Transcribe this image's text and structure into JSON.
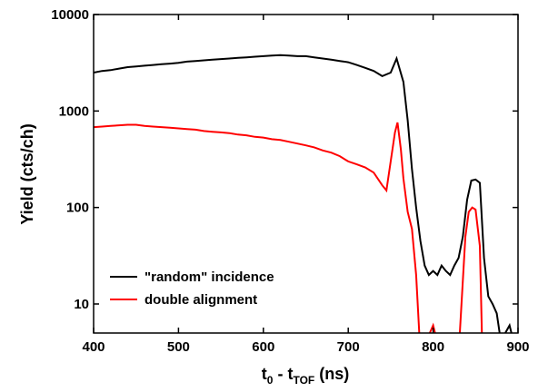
{
  "chart_data": {
    "type": "line",
    "x_label": [
      "t",
      "0",
      " - t",
      "TOF",
      " (ns)"
    ],
    "y_label": "Yield (cts/ch)",
    "xlim": [
      400,
      900
    ],
    "xticks": [
      400,
      500,
      600,
      700,
      800,
      900
    ],
    "ylim": [
      5,
      10000
    ],
    "yticks": [
      10,
      100,
      1000,
      10000
    ],
    "y_scale": "log",
    "legend": "lower left",
    "series": [
      {
        "name": "\"random\" incidence",
        "color": "#000000",
        "x": [
          400,
          410,
          420,
          430,
          440,
          450,
          460,
          470,
          480,
          490,
          500,
          510,
          520,
          530,
          540,
          550,
          560,
          570,
          580,
          590,
          600,
          610,
          620,
          630,
          640,
          650,
          660,
          670,
          680,
          690,
          700,
          710,
          720,
          730,
          740,
          750,
          757,
          765,
          770,
          775,
          780,
          785,
          790,
          795,
          800,
          805,
          810,
          815,
          820,
          825,
          830,
          835,
          840,
          845,
          850,
          855,
          860,
          865,
          870,
          875,
          880,
          885,
          890,
          895
        ],
        "values": [
          2500,
          2600,
          2650,
          2750,
          2850,
          2900,
          2950,
          3000,
          3050,
          3100,
          3150,
          3250,
          3300,
          3350,
          3400,
          3450,
          3500,
          3550,
          3600,
          3650,
          3700,
          3750,
          3800,
          3750,
          3700,
          3700,
          3600,
          3500,
          3400,
          3300,
          3200,
          3000,
          2800,
          2600,
          2300,
          2500,
          3500,
          2000,
          800,
          250,
          100,
          45,
          25,
          20,
          22,
          20,
          25,
          22,
          20,
          25,
          30,
          50,
          120,
          190,
          195,
          180,
          30,
          12,
          10,
          8,
          4,
          5,
          6,
          4
        ]
      },
      {
        "name": "double alignment",
        "color": "#ff0000",
        "x": [
          400,
          410,
          420,
          430,
          440,
          450,
          460,
          470,
          480,
          490,
          500,
          510,
          520,
          530,
          540,
          550,
          560,
          570,
          580,
          590,
          600,
          610,
          620,
          630,
          640,
          650,
          660,
          670,
          680,
          690,
          700,
          710,
          720,
          730,
          740,
          745,
          750,
          755,
          758,
          762,
          765,
          770,
          775,
          780,
          785,
          800,
          805,
          830,
          838,
          842,
          846,
          850,
          855,
          858
        ],
        "values": [
          680,
          690,
          700,
          710,
          720,
          720,
          700,
          690,
          680,
          670,
          660,
          650,
          640,
          620,
          610,
          600,
          590,
          570,
          560,
          540,
          530,
          510,
          500,
          480,
          460,
          440,
          420,
          390,
          370,
          340,
          300,
          280,
          260,
          230,
          170,
          150,
          300,
          600,
          760,
          400,
          200,
          90,
          60,
          20,
          3,
          6,
          4,
          3,
          50,
          90,
          100,
          95,
          40,
          3
        ]
      }
    ]
  }
}
